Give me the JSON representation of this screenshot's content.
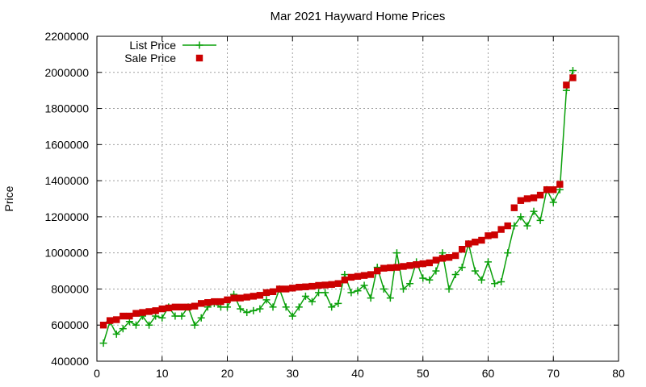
{
  "chart_data": {
    "type": "line",
    "title": "Mar 2021 Hayward Home Prices",
    "xlabel": "",
    "ylabel": "Price",
    "xlim": [
      0,
      80
    ],
    "ylim": [
      400000,
      2200000
    ],
    "xticks": [
      0,
      10,
      20,
      30,
      40,
      50,
      60,
      70,
      80
    ],
    "yticks": [
      400000,
      600000,
      800000,
      1000000,
      1200000,
      1400000,
      1600000,
      1800000,
      2000000,
      2200000
    ],
    "grid": true,
    "legend_position": "top-left",
    "colors": {
      "list": "#0aa00a",
      "sale": "#cc0000"
    },
    "series": [
      {
        "name": "List Price",
        "style": "linespoints",
        "marker": "plus",
        "x": [
          1,
          2,
          3,
          4,
          5,
          6,
          7,
          8,
          9,
          10,
          11,
          12,
          13,
          14,
          15,
          16,
          17,
          18,
          19,
          20,
          21,
          22,
          23,
          24,
          25,
          26,
          27,
          28,
          29,
          30,
          31,
          32,
          33,
          34,
          35,
          36,
          37,
          38,
          39,
          40,
          41,
          42,
          43,
          44,
          45,
          46,
          47,
          48,
          49,
          50,
          51,
          52,
          53,
          54,
          55,
          56,
          57,
          58,
          59,
          60,
          61,
          62,
          63,
          64,
          65,
          66,
          67,
          68,
          69,
          70,
          71,
          72,
          73
        ],
        "values": [
          500000,
          620000,
          550000,
          580000,
          620000,
          600000,
          650000,
          600000,
          650000,
          640000,
          700000,
          650000,
          650000,
          700000,
          600000,
          640000,
          700000,
          720000,
          700000,
          700000,
          770000,
          690000,
          670000,
          680000,
          690000,
          740000,
          700000,
          800000,
          700000,
          650000,
          700000,
          760000,
          730000,
          780000,
          780000,
          700000,
          720000,
          880000,
          780000,
          790000,
          820000,
          750000,
          920000,
          800000,
          750000,
          1000000,
          800000,
          830000,
          950000,
          860000,
          850000,
          900000,
          1000000,
          800000,
          880000,
          920000,
          1050000,
          900000,
          850000,
          950000,
          830000,
          840000,
          1000000,
          1150000,
          1200000,
          1150000,
          1230000,
          1180000,
          1350000,
          1280000,
          1350000,
          1900000,
          2010000
        ]
      },
      {
        "name": "Sale Price",
        "style": "points",
        "marker": "square",
        "x": [
          1,
          2,
          3,
          4,
          5,
          6,
          7,
          8,
          9,
          10,
          11,
          12,
          13,
          14,
          15,
          16,
          17,
          18,
          19,
          20,
          21,
          22,
          23,
          24,
          25,
          26,
          27,
          28,
          29,
          30,
          31,
          32,
          33,
          34,
          35,
          36,
          37,
          38,
          39,
          40,
          41,
          42,
          43,
          44,
          45,
          46,
          47,
          48,
          49,
          50,
          51,
          52,
          53,
          54,
          55,
          56,
          57,
          58,
          59,
          60,
          61,
          62,
          63,
          64,
          65,
          66,
          67,
          68,
          69,
          70,
          71,
          72,
          73
        ],
        "values": [
          600000,
          625000,
          630000,
          650000,
          650000,
          665000,
          670000,
          675000,
          680000,
          690000,
          695000,
          700000,
          700000,
          700000,
          705000,
          720000,
          725000,
          730000,
          730000,
          740000,
          750000,
          750000,
          755000,
          760000,
          765000,
          780000,
          785000,
          800000,
          800000,
          805000,
          810000,
          812000,
          815000,
          820000,
          822000,
          825000,
          830000,
          850000,
          865000,
          870000,
          875000,
          880000,
          900000,
          915000,
          918000,
          920000,
          925000,
          930000,
          935000,
          940000,
          945000,
          960000,
          970000,
          975000,
          985000,
          1020000,
          1050000,
          1060000,
          1070000,
          1095000,
          1100000,
          1130000,
          1150000,
          1250000,
          1290000,
          1300000,
          1305000,
          1320000,
          1350000,
          1350000,
          1380000,
          1930000,
          1970000
        ]
      }
    ]
  }
}
